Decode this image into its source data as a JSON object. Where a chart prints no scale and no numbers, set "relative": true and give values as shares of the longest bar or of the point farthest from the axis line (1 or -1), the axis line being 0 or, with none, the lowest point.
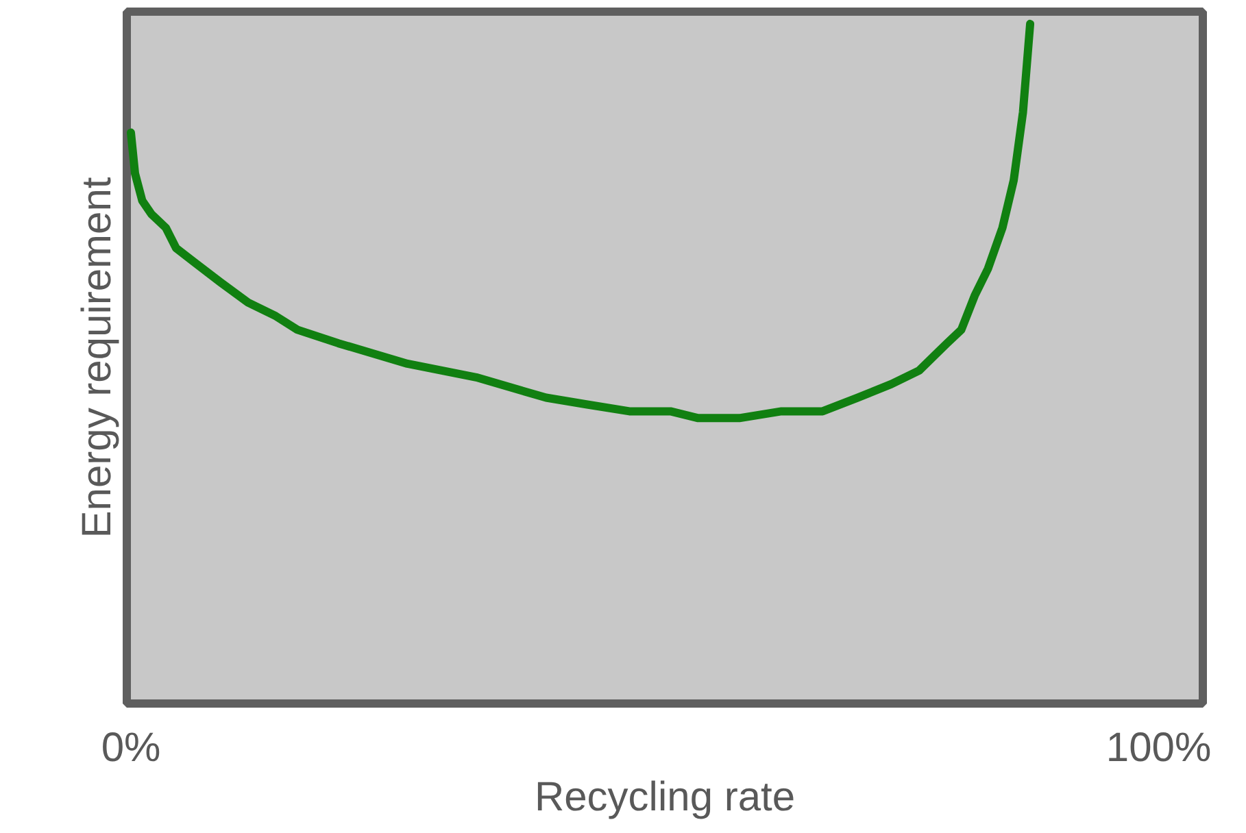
{
  "chart_data": {
    "type": "line",
    "xlabel": "Recycling rate",
    "ylabel": "Energy requirement",
    "relative": true,
    "xlim": [
      -0.4,
      104.3
    ],
    "xticks": [
      {
        "value": 0,
        "label": "0%"
      },
      {
        "value": 100,
        "label": "100%"
      }
    ],
    "grid": false,
    "series": [
      {
        "color": "#118011",
        "x": [
          0,
          0.4,
          1.1,
          2.0,
          3.4,
          4.4,
          6.1,
          8.7,
          11.4,
          14.1,
          16.2,
          20.2,
          26.9,
          33.6,
          40.4,
          44.4,
          48.5,
          52.5,
          55.2,
          59.2,
          63.3,
          67.3,
          70.7,
          74.0,
          76.7,
          79.4,
          80.8,
          82.1,
          83.4,
          84.8,
          85.9,
          86.8,
          87.5
        ],
        "values": [
          0.84,
          0.78,
          0.74,
          0.72,
          0.7,
          0.67,
          0.65,
          0.62,
          0.59,
          0.57,
          0.55,
          0.53,
          0.5,
          0.48,
          0.45,
          0.44,
          0.43,
          0.43,
          0.42,
          0.42,
          0.43,
          0.43,
          0.45,
          0.47,
          0.49,
          0.53,
          0.55,
          0.6,
          0.64,
          0.7,
          0.77,
          0.87,
          1
        ]
      }
    ]
  }
}
